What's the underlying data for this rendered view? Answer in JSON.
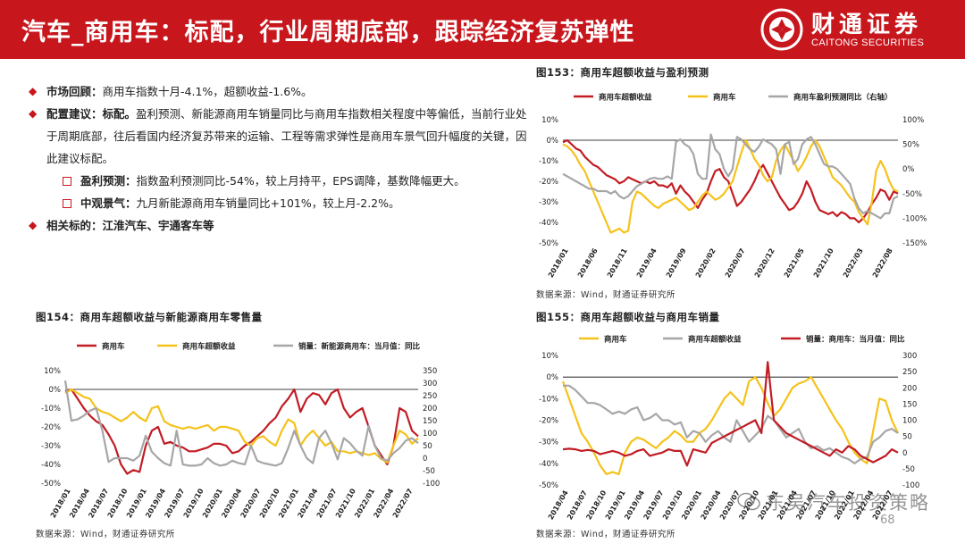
{
  "header": {
    "title": "汽车_商用车：标配，行业周期底部，跟踪经济复苏弹性",
    "logo_cn": "财通证券",
    "logo_en": "CAITONG SECURITIES"
  },
  "colors": {
    "brand_red": "#c8161d",
    "series_red": "#c21c24",
    "series_yellow": "#f5c21b",
    "series_gray": "#a6a6a6"
  },
  "bullets": [
    {
      "label": "市场回顾：",
      "text": "商用车指数十月-4.1%，超额收益-1.6%。"
    },
    {
      "label": "配置建议：标配。",
      "text": "盈利预测、新能源商用车销量同比与商用车指数相关程度中等偏低，当前行业处于周期底部，往后看国内经济复苏带来的运输、工程等需求弹性是商用车景气回升幅度的关键，因此建议标配。"
    },
    {
      "label": "相关标的：江淮汽车、宇通客车等",
      "text": ""
    }
  ],
  "sub_bullets": [
    {
      "label": "盈利预测：",
      "text": "指数盈利预测同比-54%，较上月持平，EPS调降，基数降幅更大。"
    },
    {
      "label": "中观景气：",
      "text": "九月新能源商用车销量同比+101%，较上月-2.2%。"
    }
  ],
  "watermark": "东吴汽车投资策略",
  "page_number": "68",
  "chart_data": [
    {
      "id": "fig153",
      "type": "line",
      "title": "图153：商用车超额收益与盈利预测",
      "source": "数据来源：Wind，财通证券研究所",
      "left_ticks": [
        "10%",
        "0%",
        "-10%",
        "-20%",
        "-30%",
        "-40%",
        "-50%"
      ],
      "left_ylim": [
        -0.5,
        0.1
      ],
      "right_ticks": [
        "100%",
        "50%",
        "0%",
        "-50%",
        "-100%",
        "-150%"
      ],
      "right_ylim": [
        -1.5,
        1.0
      ],
      "x_ticks": [
        "2018/01",
        "2018/06",
        "2018/11",
        "2019/04",
        "2019/09",
        "2020/02",
        "2020/07",
        "2020/12",
        "2021/05",
        "2021/10",
        "2022/03",
        "2022/08"
      ],
      "series": [
        {
          "name": "商用车超额收益",
          "color": "#c21c24",
          "axis": "left",
          "values": [
            -0.01,
            0.0,
            -0.02,
            -0.04,
            -0.05,
            -0.08,
            -0.1,
            -0.12,
            -0.13,
            -0.15,
            -0.17,
            -0.18,
            -0.19,
            -0.21,
            -0.2,
            -0.18,
            -0.19,
            -0.2,
            -0.21,
            -0.2,
            -0.21,
            -0.2,
            -0.22,
            -0.22,
            -0.23,
            -0.21,
            -0.26,
            -0.22,
            -0.25,
            -0.27,
            -0.3,
            -0.33,
            -0.29,
            -0.26,
            -0.2,
            -0.15,
            -0.14,
            -0.18,
            -0.2,
            -0.26,
            -0.32,
            -0.3,
            -0.27,
            -0.24,
            -0.2,
            -0.15,
            -0.12,
            -0.16,
            -0.2,
            -0.24,
            -0.28,
            -0.31,
            -0.34,
            -0.33,
            -0.3,
            -0.26,
            -0.2,
            -0.24,
            -0.3,
            -0.34,
            -0.35,
            -0.36,
            -0.35,
            -0.37,
            -0.35,
            -0.36,
            -0.38,
            -0.38,
            -0.4,
            -0.38,
            -0.35,
            -0.31,
            -0.28,
            -0.24,
            -0.25,
            -0.29,
            -0.25,
            -0.26
          ]
        },
        {
          "name": "商用车",
          "color": "#f5c21b",
          "axis": "left",
          "values": [
            -0.02,
            -0.03,
            -0.05,
            -0.08,
            -0.12,
            -0.15,
            -0.2,
            -0.25,
            -0.3,
            -0.35,
            -0.4,
            -0.45,
            -0.44,
            -0.43,
            -0.45,
            -0.44,
            -0.3,
            -0.25,
            -0.26,
            -0.28,
            -0.3,
            -0.32,
            -0.33,
            -0.31,
            -0.3,
            -0.29,
            -0.28,
            -0.3,
            -0.32,
            -0.34,
            -0.33,
            -0.3,
            -0.27,
            -0.25,
            -0.27,
            -0.29,
            -0.28,
            -0.26,
            -0.23,
            -0.2,
            -0.13,
            -0.06,
            0.0,
            -0.04,
            -0.09,
            -0.12,
            -0.17,
            -0.2,
            -0.18,
            -0.1,
            -0.05,
            -0.02,
            -0.06,
            -0.1,
            -0.15,
            -0.12,
            -0.08,
            -0.03,
            0.0,
            -0.03,
            -0.08,
            -0.13,
            -0.18,
            -0.2,
            -0.22,
            -0.25,
            -0.28,
            -0.3,
            -0.35,
            -0.38,
            -0.41,
            -0.3,
            -0.15,
            -0.1,
            -0.14,
            -0.2,
            -0.24,
            -0.25
          ]
        },
        {
          "name": "商用车盈利预测同比（右轴）",
          "color": "#a6a6a6",
          "axis": "right",
          "values": [
            -0.1,
            -0.15,
            -0.2,
            -0.25,
            -0.3,
            -0.35,
            -0.4,
            -0.4,
            -0.45,
            -0.45,
            -0.45,
            -0.5,
            -0.45,
            -0.55,
            -0.6,
            -0.55,
            -0.45,
            -0.35,
            -0.3,
            -0.25,
            -0.2,
            -0.18,
            -0.2,
            -0.2,
            -0.15,
            -0.2,
            0.55,
            0.6,
            0.5,
            0.45,
            0.3,
            -0.1,
            -0.2,
            -0.2,
            0.7,
            0.4,
            0.3,
            0.0,
            -0.15,
            0.0,
            0.65,
            0.6,
            0.5,
            0.4,
            0.35,
            0.45,
            0.6,
            0.55,
            0.5,
            0.4,
            -0.1,
            0.5,
            0.55,
            0.1,
            0.2,
            0.5,
            0.6,
            0.65,
            0.5,
            0.3,
            0.1,
            0.05,
            0.05,
            0.0,
            -0.1,
            -0.2,
            -0.3,
            -0.6,
            -0.8,
            -0.9,
            -0.85,
            -0.9,
            -0.95,
            -1.0,
            -0.9,
            -0.9,
            -0.6,
            -0.55
          ]
        }
      ]
    },
    {
      "id": "fig154",
      "type": "line",
      "title": "图154：商用车超额收益与新能源商用车零售量",
      "source": "数据来源：Wind，财通证券研究所",
      "left_ticks": [
        "10%",
        "0%",
        "-10%",
        "-20%",
        "-30%",
        "-40%",
        "-50%"
      ],
      "left_ylim": [
        -0.5,
        0.1
      ],
      "right_ticks": [
        "350",
        "300",
        "250",
        "200",
        "150",
        "100",
        "50",
        "0",
        "-50",
        "-100"
      ],
      "right_ylim": [
        -100,
        350
      ],
      "x_ticks": [
        "2018/01",
        "2018/04",
        "2018/07",
        "2018/10",
        "2019/01",
        "2019/04",
        "2019/07",
        "2019/10",
        "2020/01",
        "2020/04",
        "2020/07",
        "2020/10",
        "2021/01",
        "2021/04",
        "2021/07",
        "2021/10",
        "2022/01",
        "2022/04",
        "2022/07"
      ],
      "series": [
        {
          "name": "商用车",
          "color": "#c21c24",
          "axis": "left",
          "values": [
            -0.01,
            0.0,
            -0.05,
            -0.1,
            -0.14,
            -0.17,
            -0.19,
            -0.24,
            -0.3,
            -0.4,
            -0.45,
            -0.43,
            -0.44,
            -0.3,
            -0.22,
            -0.2,
            -0.29,
            -0.28,
            -0.3,
            -0.31,
            -0.33,
            -0.33,
            -0.32,
            -0.31,
            -0.29,
            -0.29,
            -0.3,
            -0.34,
            -0.33,
            -0.3,
            -0.28,
            -0.25,
            -0.22,
            -0.18,
            -0.15,
            -0.09,
            -0.05,
            0.0,
            -0.12,
            -0.05,
            -0.02,
            -0.03,
            -0.08,
            -0.02,
            0.0,
            -0.1,
            -0.15,
            -0.12,
            -0.1,
            -0.2,
            -0.3,
            -0.35,
            -0.4,
            -0.3,
            -0.1,
            -0.12,
            -0.22,
            -0.25
          ]
        },
        {
          "name": "商用车超额收益",
          "color": "#f5c21b",
          "axis": "left",
          "values": [
            -0.02,
            0.0,
            -0.02,
            -0.04,
            -0.05,
            -0.1,
            -0.12,
            -0.13,
            -0.15,
            -0.17,
            -0.15,
            -0.12,
            -0.15,
            -0.17,
            -0.1,
            -0.09,
            -0.17,
            -0.19,
            -0.2,
            -0.21,
            -0.2,
            -0.21,
            -0.2,
            -0.19,
            -0.22,
            -0.2,
            -0.2,
            -0.21,
            -0.22,
            -0.28,
            -0.3,
            -0.26,
            -0.25,
            -0.28,
            -0.3,
            -0.22,
            -0.16,
            -0.18,
            -0.3,
            -0.25,
            -0.22,
            -0.26,
            -0.3,
            -0.28,
            -0.33,
            -0.33,
            -0.34,
            -0.33,
            -0.34,
            -0.35,
            -0.34,
            -0.37,
            -0.39,
            -0.3,
            -0.22,
            -0.24,
            -0.29,
            -0.26
          ]
        },
        {
          "name": "销量：新能源商用车：当月值：同比",
          "color": "#a6a6a6",
          "axis": "right",
          "values": [
            310,
            150,
            155,
            170,
            190,
            200,
            110,
            -15,
            0,
            0,
            0,
            -10,
            10,
            90,
            25,
            0,
            -20,
            -30,
            110,
            -25,
            -30,
            -30,
            -25,
            0,
            -20,
            -30,
            -25,
            -10,
            -20,
            -25,
            50,
            -10,
            -20,
            -25,
            -30,
            -20,
            40,
            110,
            50,
            0,
            -20,
            80,
            110,
            60,
            -5,
            80,
            60,
            30,
            10,
            130,
            50,
            0,
            -10,
            20,
            40,
            70,
            80,
            60
          ]
        }
      ]
    },
    {
      "id": "fig155",
      "type": "line",
      "title": "图155：商用车超额收益与商用车销量",
      "source": "数据来源：Wind，财通证券研究所",
      "left_ticks": [
        "10%",
        "0%",
        "-10%",
        "-20%",
        "-30%",
        "-40%",
        "-50%"
      ],
      "left_ylim": [
        -0.5,
        0.1
      ],
      "right_ticks": [
        "300",
        "250",
        "200",
        "150",
        "100",
        "50",
        "0",
        "-50",
        "-100"
      ],
      "right_ylim": [
        -100,
        300
      ],
      "x_ticks": [
        "2018/04",
        "2018/07",
        "2018/10",
        "2019/01",
        "2019/04",
        "2019/07",
        "2019/10",
        "2020/01",
        "2020/04",
        "2020/07",
        "2020/10",
        "2021/01",
        "2021/04",
        "2021/07",
        "2021/10",
        "2022/01",
        "2022/04",
        "2022/07"
      ],
      "series": [
        {
          "name": "商用车",
          "color": "#f5c21b",
          "axis": "left",
          "values": [
            -0.02,
            -0.1,
            -0.18,
            -0.26,
            -0.3,
            -0.35,
            -0.41,
            -0.45,
            -0.44,
            -0.45,
            -0.35,
            -0.3,
            -0.28,
            -0.29,
            -0.31,
            -0.33,
            -0.3,
            -0.28,
            -0.25,
            -0.27,
            -0.3,
            -0.3,
            -0.26,
            -0.24,
            -0.2,
            -0.15,
            -0.1,
            -0.07,
            -0.1,
            -0.13,
            -0.02,
            0.0,
            -0.05,
            -0.12,
            -0.18,
            -0.15,
            -0.1,
            -0.05,
            -0.03,
            -0.02,
            0.0,
            -0.05,
            -0.1,
            -0.15,
            -0.2,
            -0.24,
            -0.3,
            -0.35,
            -0.38,
            -0.4,
            -0.25,
            -0.1,
            -0.11,
            -0.2,
            -0.26
          ]
        },
        {
          "name": "商用车超额收益",
          "color": "#a6a6a6",
          "axis": "left",
          "values": [
            -0.04,
            -0.04,
            -0.06,
            -0.09,
            -0.12,
            -0.12,
            -0.13,
            -0.15,
            -0.17,
            -0.16,
            -0.17,
            -0.15,
            -0.14,
            -0.2,
            -0.19,
            -0.17,
            -0.2,
            -0.2,
            -0.22,
            -0.21,
            -0.28,
            -0.25,
            -0.26,
            -0.3,
            -0.27,
            -0.25,
            -0.28,
            -0.3,
            -0.2,
            -0.25,
            -0.3,
            -0.27,
            -0.24,
            -0.18,
            -0.2,
            -0.24,
            -0.28,
            -0.26,
            -0.24,
            -0.3,
            -0.33,
            -0.32,
            -0.34,
            -0.33,
            -0.35,
            -0.37,
            -0.38,
            -0.4,
            -0.38,
            -0.37,
            -0.3,
            -0.28,
            -0.25,
            -0.24,
            -0.26
          ]
        },
        {
          "name": "销量：商用车：当月值：同比",
          "color": "#c21c24",
          "axis": "right",
          "values": [
            10,
            12,
            10,
            5,
            8,
            5,
            -5,
            0,
            5,
            0,
            -10,
            -5,
            5,
            10,
            -10,
            -5,
            0,
            10,
            5,
            5,
            -40,
            10,
            5,
            0,
            30,
            40,
            50,
            60,
            70,
            80,
            90,
            100,
            60,
            280,
            100,
            80,
            60,
            50,
            40,
            30,
            20,
            10,
            0,
            -10,
            10,
            0,
            20,
            10,
            -10,
            -20,
            -30,
            -20,
            -10,
            10,
            0
          ]
        }
      ]
    }
  ]
}
